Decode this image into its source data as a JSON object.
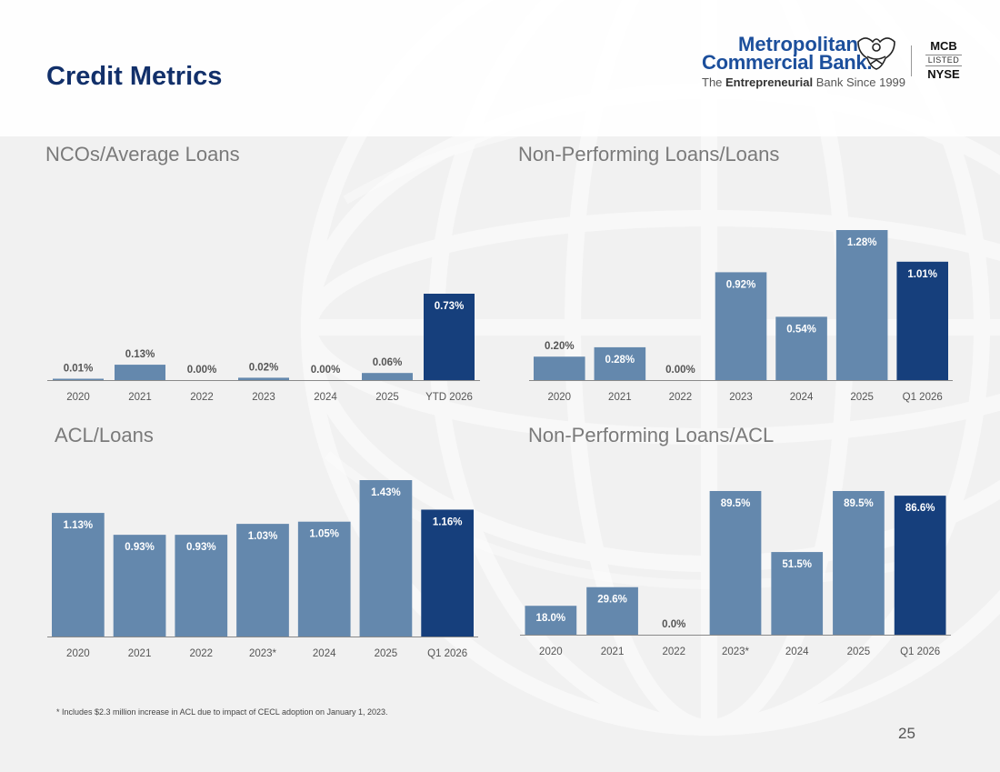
{
  "page": {
    "title": "Credit Metrics",
    "footnote": "*  Includes $2.3 million increase in ACL due to impact of CECL adoption on January 1, 2023.",
    "page_number": "25"
  },
  "logo": {
    "line1": "Metropolitan",
    "line2": "Commercial Bank.",
    "tagline_pre": "The ",
    "tagline_bold": "Entrepreneurial",
    "tagline_post": " Bank Since 1999",
    "ticker": "MCB",
    "listed": "LISTED",
    "exchange": "NYSE",
    "icon": "eagle-icon"
  },
  "colors": {
    "bar_historical": "#6488ad",
    "bar_current": "#163f7c",
    "title_blue": "#12306a",
    "axis_label": "#555555"
  },
  "chart_data": [
    {
      "type": "bar",
      "title": "NCOs/Average Loans",
      "categories": [
        "2020",
        "2021",
        "2022",
        "2023",
        "2024",
        "2025",
        "YTD 2026"
      ],
      "values": [
        0.01,
        0.13,
        0.0,
        0.02,
        0.0,
        0.06,
        0.73
      ],
      "labels": [
        "0.01%",
        "0.13%",
        "0.00%",
        "0.02%",
        "0.00%",
        "0.06%",
        "0.73%"
      ],
      "highlight_last": true
    },
    {
      "type": "bar",
      "title": "Non-Performing Loans/Loans",
      "categories": [
        "2020",
        "2021",
        "2022",
        "2023",
        "2024",
        "2025",
        "Q1 2026"
      ],
      "values": [
        0.2,
        0.28,
        0.0,
        0.92,
        0.54,
        1.28,
        1.01
      ],
      "labels": [
        "0.20%",
        "0.28%",
        "0.00%",
        "0.92%",
        "0.54%",
        "1.28%",
        "1.01%"
      ],
      "highlight_last": true
    },
    {
      "type": "bar",
      "title": "ACL/Loans",
      "categories": [
        "2020",
        "2021",
        "2022",
        "2023*",
        "2024",
        "2025",
        "Q1 2026"
      ],
      "values": [
        1.13,
        0.93,
        0.93,
        1.03,
        1.05,
        1.43,
        1.16
      ],
      "labels": [
        "1.13%",
        "0.93%",
        "0.93%",
        "1.03%",
        "1.05%",
        "1.43%",
        "1.16%"
      ],
      "highlight_last": true
    },
    {
      "type": "bar",
      "title": "Non-Performing Loans/ACL",
      "categories": [
        "2020",
        "2021",
        "2022",
        "2023*",
        "2024",
        "2025",
        "Q1 2026"
      ],
      "values": [
        18.0,
        29.6,
        0.0,
        89.5,
        51.5,
        89.5,
        86.6
      ],
      "labels": [
        "18.0%",
        "29.6%",
        "0.0%",
        "89.5%",
        "51.5%",
        "89.5%",
        "86.6%"
      ],
      "highlight_last": true
    }
  ]
}
